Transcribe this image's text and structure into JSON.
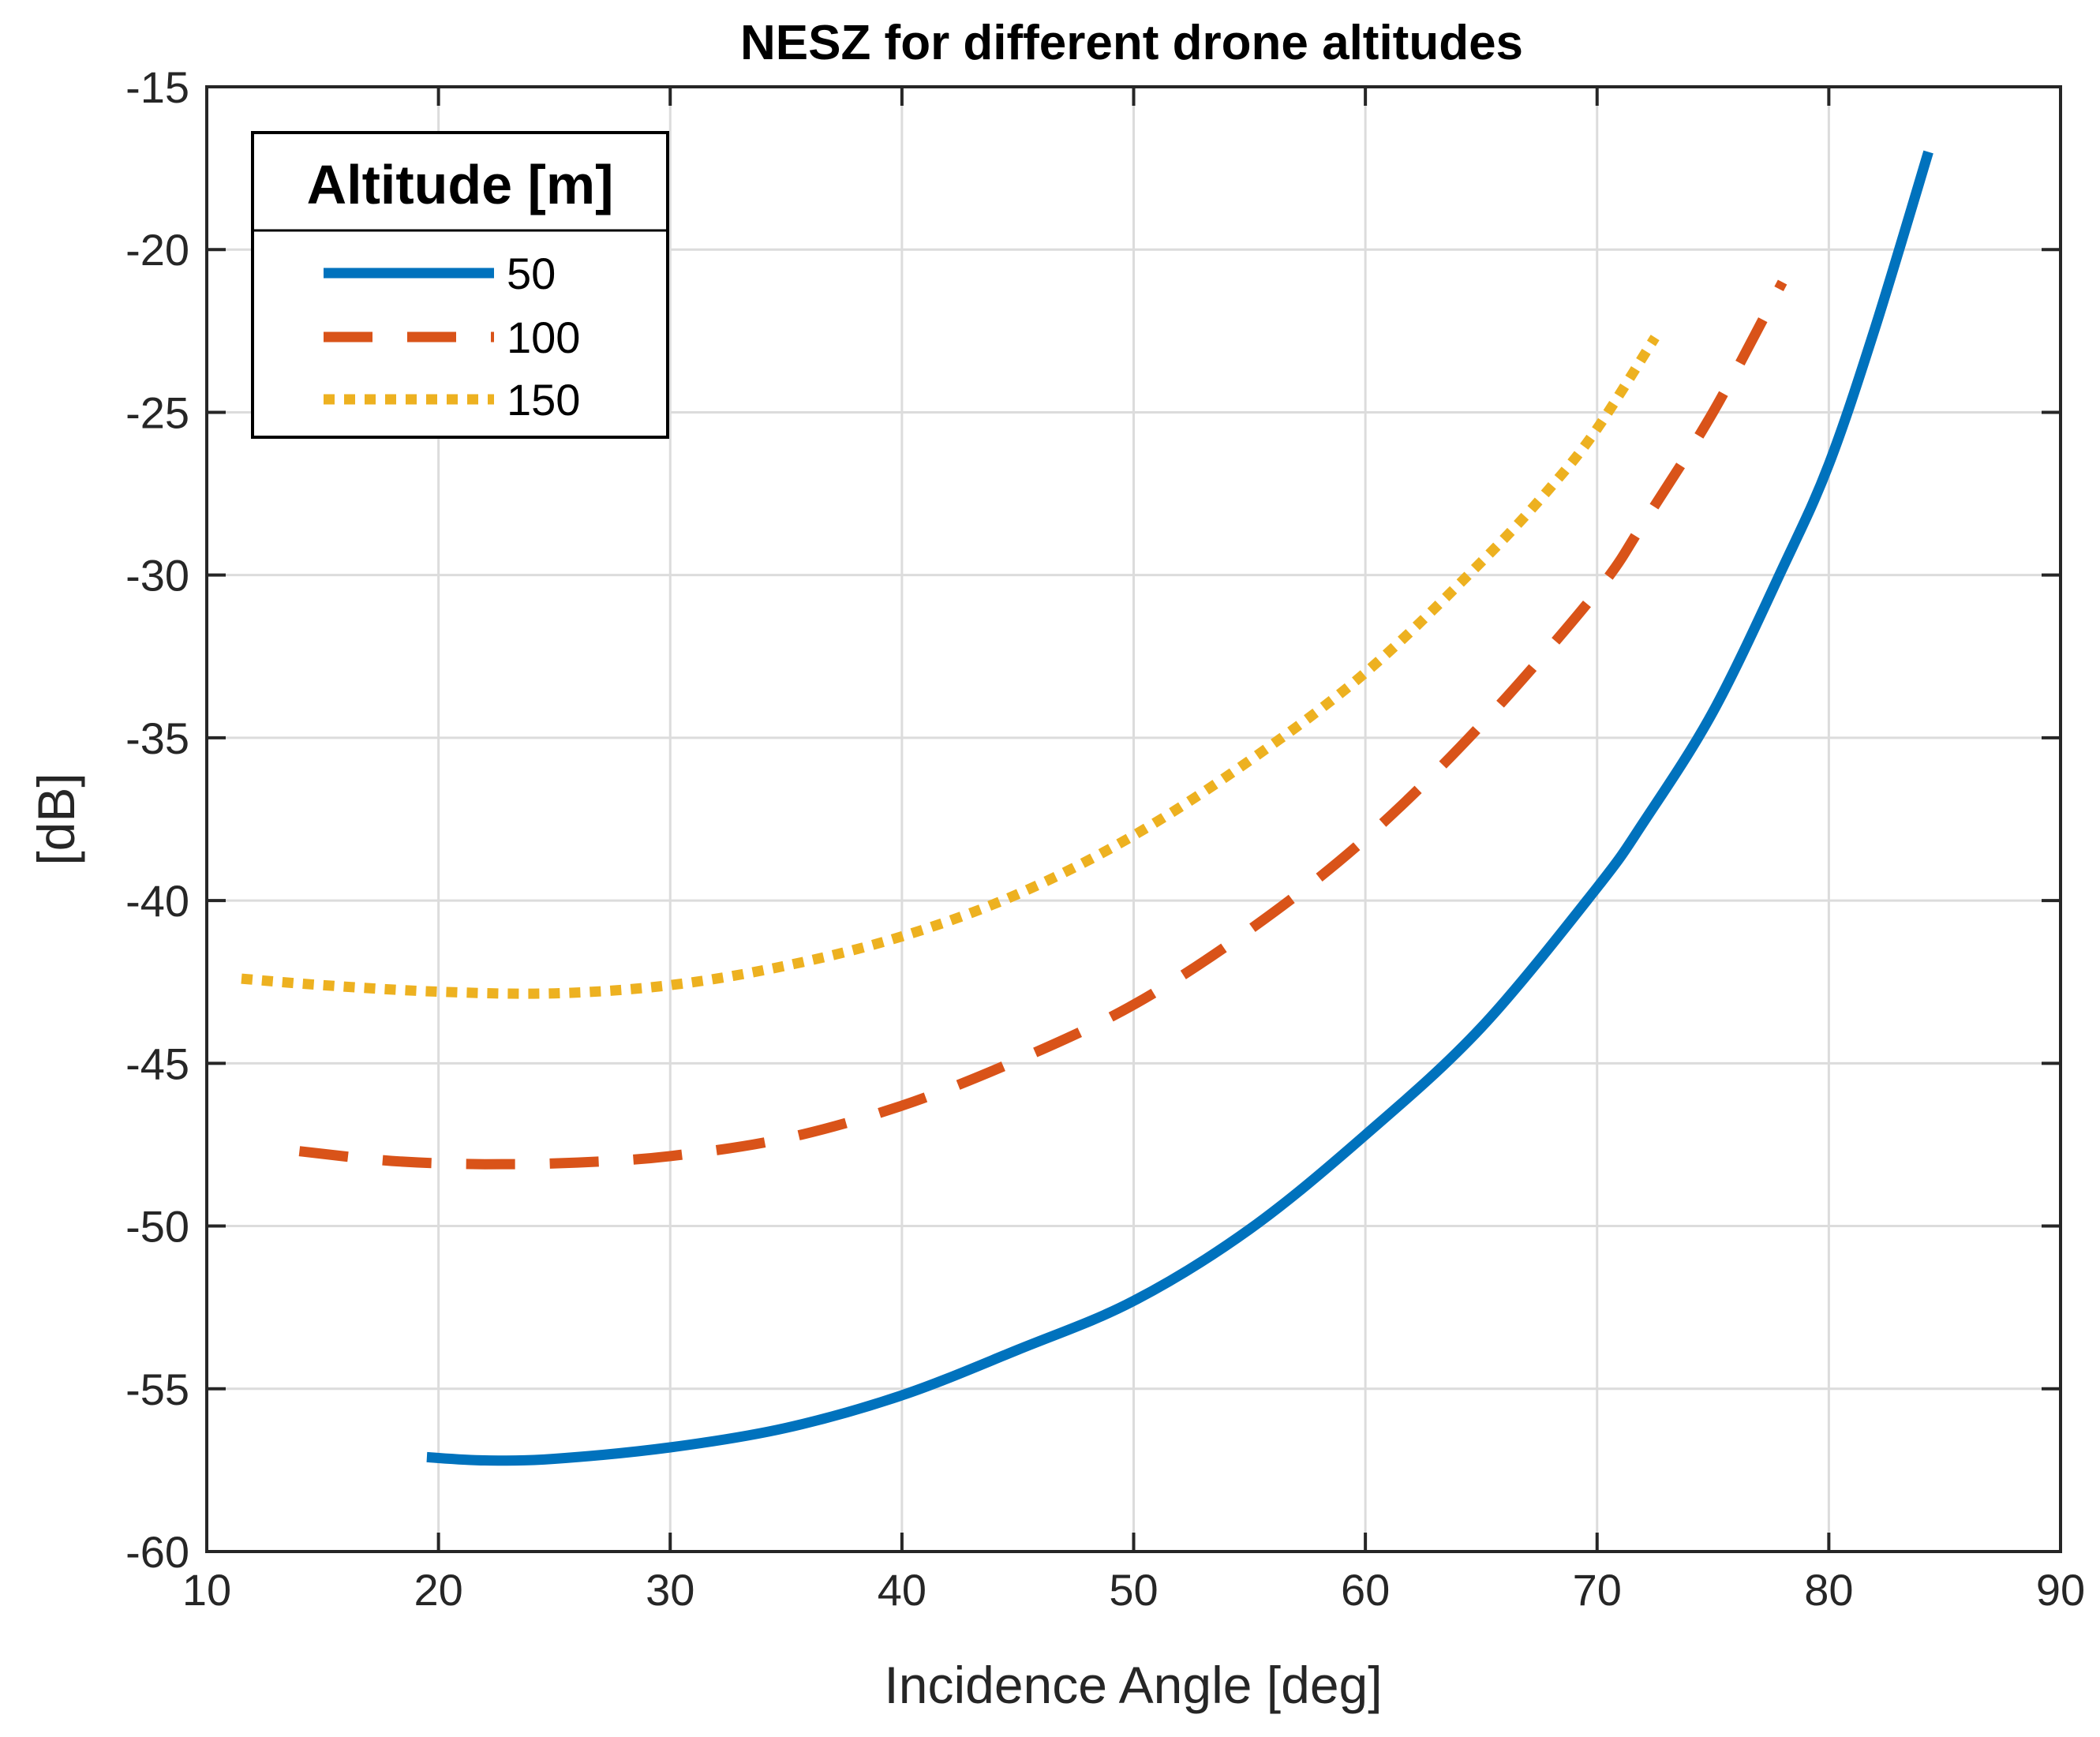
{
  "chart_data": {
    "type": "line",
    "title": "NESZ for different drone altitudes",
    "xlabel": "Incidence Angle [deg]",
    "ylabel": "[dB]",
    "xlim": [
      10,
      90
    ],
    "ylim": [
      -60,
      -15
    ],
    "xticks": [
      10,
      20,
      30,
      40,
      50,
      60,
      70,
      80,
      90
    ],
    "yticks": [
      -60,
      -55,
      -50,
      -45,
      -40,
      -35,
      -30,
      -25,
      -20,
      -15
    ],
    "xtick_labels": [
      "10",
      "20",
      "30",
      "40",
      "50",
      "60",
      "70",
      "80",
      "90"
    ],
    "ytick_labels": [
      "-60",
      "-55",
      "-50",
      "-45",
      "-40",
      "-35",
      "-30",
      "-25",
      "-20",
      "-15"
    ],
    "grid": true,
    "legend": {
      "title": "Altitude [m]",
      "location": "top-left"
    },
    "series": [
      {
        "name": "50",
        "color": "#0072BD",
        "style": "solid",
        "x": [
          19.5,
          22,
          25,
          30,
          35,
          40,
          45,
          50,
          55,
          60,
          65,
          70,
          72,
          75,
          78,
          80,
          82,
          84.3
        ],
        "y": [
          -57.1,
          -57.2,
          -57.15,
          -56.8,
          -56.2,
          -55.2,
          -53.8,
          -52.3,
          -50.1,
          -47.2,
          -43.9,
          -39.6,
          -37.6,
          -34.2,
          -29.8,
          -26.6,
          -22.4,
          -17.0
        ]
      },
      {
        "name": "100",
        "color": "#D95319",
        "style": "dashed",
        "x": [
          14,
          18,
          22,
          26,
          30,
          35,
          40,
          45,
          50,
          55,
          60,
          65,
          70,
          72,
          75,
          78
        ],
        "y": [
          -47.7,
          -48.0,
          -48.1,
          -48.05,
          -47.85,
          -47.3,
          -46.3,
          -44.9,
          -43.2,
          -40.9,
          -38.1,
          -34.6,
          -30.5,
          -28.4,
          -25.0,
          -21.0
        ]
      },
      {
        "name": "150",
        "color": "#EDB120",
        "style": "dotted",
        "x": [
          11.5,
          15,
          20,
          25,
          30,
          35,
          40,
          45,
          50,
          55,
          60,
          65,
          68,
          70,
          72.5
        ],
        "y": [
          -42.4,
          -42.6,
          -42.8,
          -42.85,
          -42.6,
          -42.0,
          -41.1,
          -39.8,
          -38.0,
          -35.7,
          -33.0,
          -29.6,
          -27.3,
          -25.5,
          -22.7
        ]
      }
    ]
  }
}
